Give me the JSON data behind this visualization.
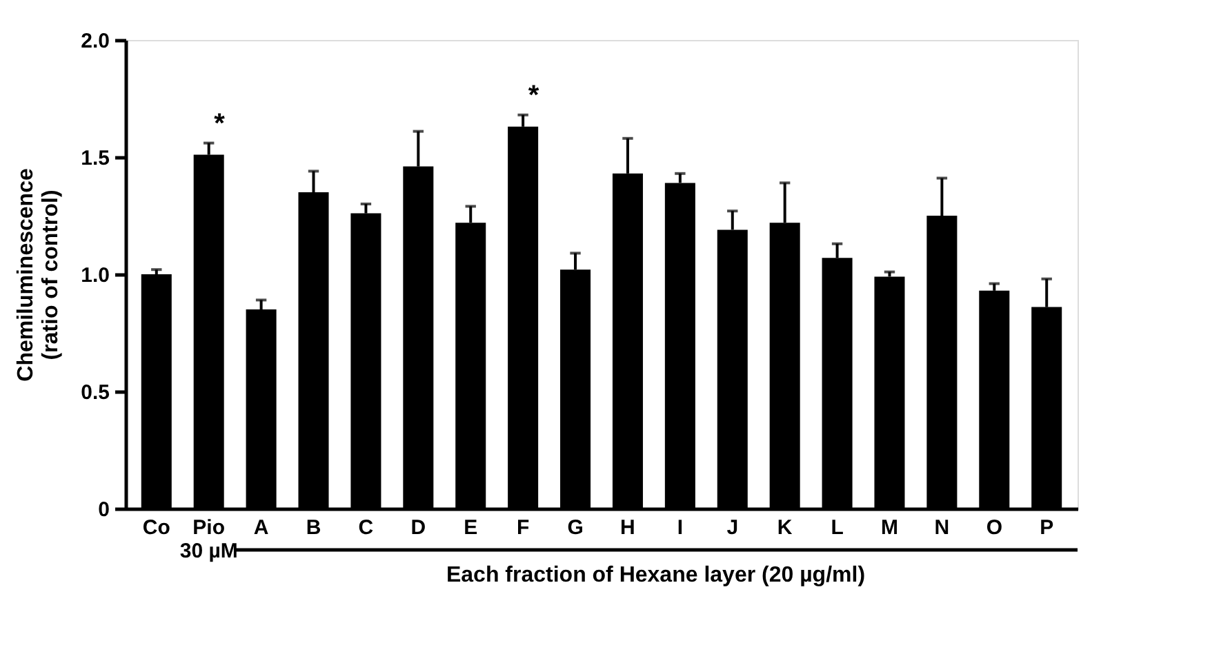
{
  "chart_data": {
    "type": "bar",
    "ylabel": "Chemiluminescence\n(ratio of control)",
    "xlabel": "Each fraction of Hexane layer (20 µg/ml)",
    "categories": [
      "Co",
      "Pio\n30 µM",
      "A",
      "B",
      "C",
      "D",
      "E",
      "F",
      "G",
      "H",
      "I",
      "J",
      "K",
      "L",
      "M",
      "N",
      "O",
      "P"
    ],
    "values": [
      1.0,
      1.51,
      0.85,
      1.35,
      1.26,
      1.46,
      1.22,
      1.63,
      1.02,
      1.43,
      1.39,
      1.19,
      1.22,
      1.07,
      0.99,
      1.25,
      0.93,
      0.86
    ],
    "errors": [
      [
        1.0,
        1.02
      ],
      [
        1.51,
        1.56
      ],
      [
        0.85,
        0.89
      ],
      [
        1.35,
        1.44
      ],
      [
        1.26,
        1.3
      ],
      [
        1.46,
        1.61
      ],
      [
        1.22,
        1.29
      ],
      [
        1.63,
        1.68
      ],
      [
        1.02,
        1.09
      ],
      [
        1.43,
        1.58
      ],
      [
        1.39,
        1.43
      ],
      [
        1.19,
        1.27
      ],
      [
        1.22,
        1.39
      ],
      [
        1.07,
        1.13
      ],
      [
        0.99,
        1.01
      ],
      [
        1.25,
        1.41
      ],
      [
        0.93,
        0.96
      ],
      [
        0.86,
        0.98
      ]
    ],
    "color": "#000000",
    "ylim": [
      0,
      2.0
    ],
    "yticks": [
      0,
      {
        "value": 0.5,
        "label": "0.5"
      },
      {
        "value": 1.0,
        "label": "1.0"
      },
      {
        "value": 1.5,
        "label": "1.5"
      },
      {
        "value": 2.0,
        "label": "2.0"
      }
    ],
    "annotations": [
      {
        "text": "*",
        "x": "Pio\n30 µM",
        "y": 1.56
      },
      {
        "text": "*",
        "x": "F",
        "y": 1.68
      }
    ]
  }
}
